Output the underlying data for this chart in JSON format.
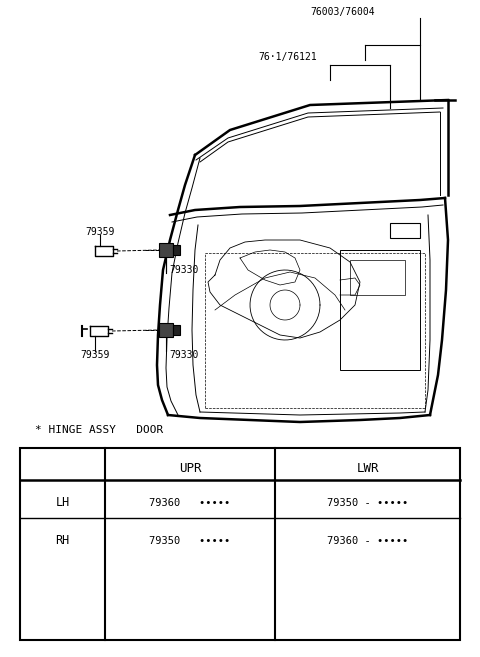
{
  "bg_color": "#ffffff",
  "fig_width": 4.8,
  "fig_height": 6.57,
  "dpi": 100,
  "title_label": "* HINGE ASSY   DOOR",
  "table_header_col1": "UPR",
  "table_header_col2": "LWR",
  "table_row1_col0": "LH",
  "table_row1_col1": "79360   •••••",
  "table_row1_col2": "79350 - •••••",
  "table_row2_col0": "RH",
  "table_row2_col1": "79350   •••••",
  "table_row2_col2": "79360 - •••••",
  "label_76003_76004": "76003/76004",
  "label_7611_76121": "76·1/76121",
  "label_79330_upper": "79330",
  "label_79359_upper": "79359",
  "label_79330_lower": "79330",
  "label_79359_lower": "79359"
}
